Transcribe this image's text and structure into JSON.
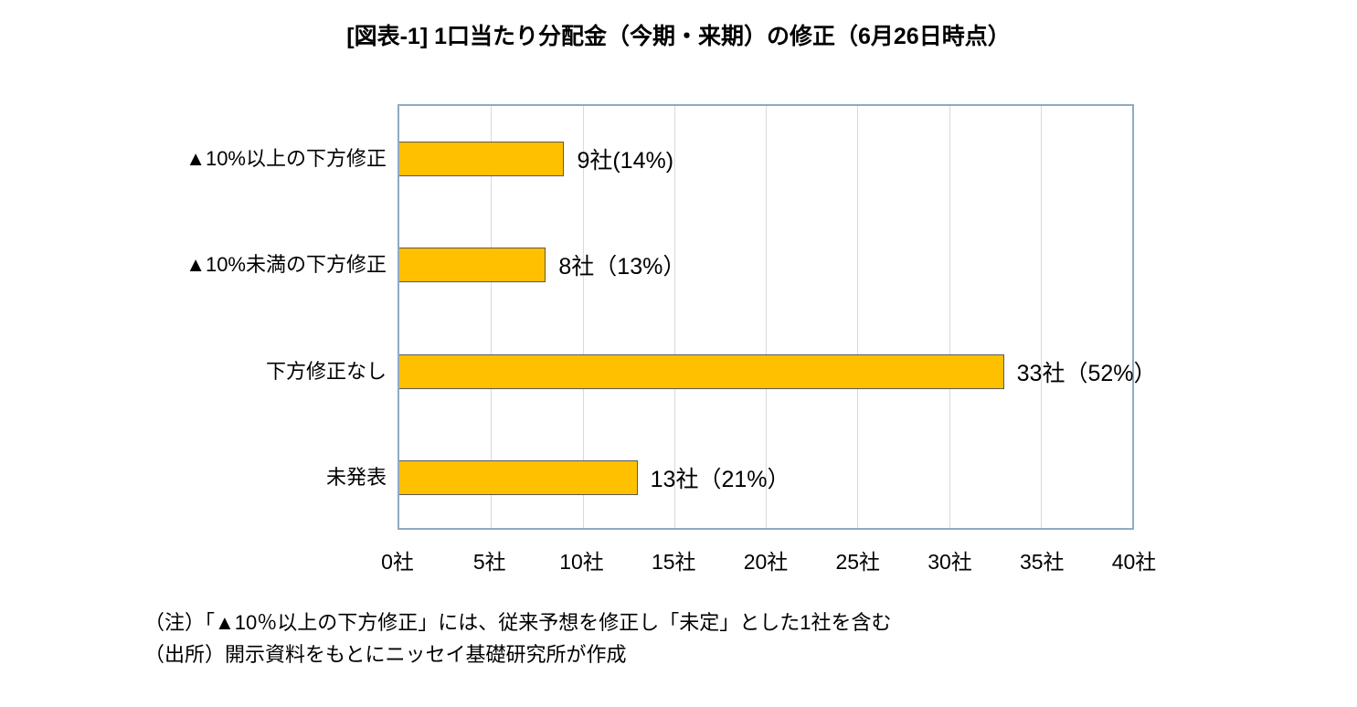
{
  "chart_data": {
    "type": "bar",
    "orientation": "horizontal",
    "title": "[図表-1] 1口当たり分配金（今期・来期）の修正（6月26日時点）",
    "categories": [
      "▲10%以上の下方修正",
      "▲10%未満の下方修正",
      "下方修正なし",
      "未発表"
    ],
    "values": [
      9,
      8,
      33,
      13
    ],
    "data_labels": [
      "9社(14%)",
      "8社（13%）",
      "33社（52%）",
      "13社（21%）"
    ],
    "x_ticks": [
      "0社",
      "5社",
      "10社",
      "15社",
      "20社",
      "25社",
      "30社",
      "35社",
      "40社"
    ],
    "xlabel": "",
    "ylabel": "",
    "xlim": [
      0,
      40
    ],
    "grid": true,
    "legend": false,
    "bar_color": "#FFC000",
    "bar_border_color": "#595959",
    "plot_border_color": "#8FAAC3",
    "gridline_color": "#D9D9D9"
  },
  "notes": {
    "note1": "（注）「▲10％以上の下方修正」には、従来予想を修正し「未定」とした1社を含む",
    "note2": "（出所）開示資料をもとにニッセイ基礎研究所が作成"
  }
}
